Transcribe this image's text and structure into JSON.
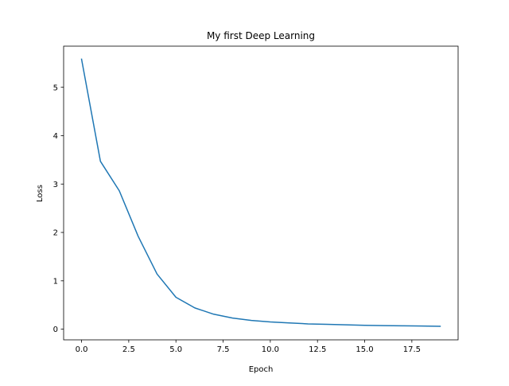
{
  "chart_data": {
    "type": "line",
    "title": "My first Deep Learning",
    "xlabel": "Epoch",
    "ylabel": "Loss",
    "grid": false,
    "xlim": [
      -0.95,
      19.95
    ],
    "ylim": [
      -0.22,
      5.85
    ],
    "x_ticks": [
      0.0,
      2.5,
      5.0,
      7.5,
      10.0,
      12.5,
      15.0,
      17.5
    ],
    "x_tick_labels": [
      "0.0",
      "2.5",
      "5.0",
      "7.5",
      "10.0",
      "12.5",
      "15.0",
      "17.5"
    ],
    "y_ticks": [
      0,
      1,
      2,
      3,
      4,
      5
    ],
    "y_tick_labels": [
      "0",
      "1",
      "2",
      "3",
      "4",
      "5"
    ],
    "series": [
      {
        "color": "#1f77b4",
        "x": [
          0,
          1,
          2,
          3,
          4,
          5,
          6,
          7,
          8,
          9,
          10,
          11,
          12,
          13,
          14,
          15,
          16,
          17,
          18,
          19
        ],
        "values": [
          5.58,
          3.47,
          2.86,
          1.92,
          1.14,
          0.66,
          0.44,
          0.31,
          0.23,
          0.18,
          0.15,
          0.13,
          0.11,
          0.1,
          0.09,
          0.08,
          0.075,
          0.07,
          0.065,
          0.06
        ]
      }
    ]
  }
}
